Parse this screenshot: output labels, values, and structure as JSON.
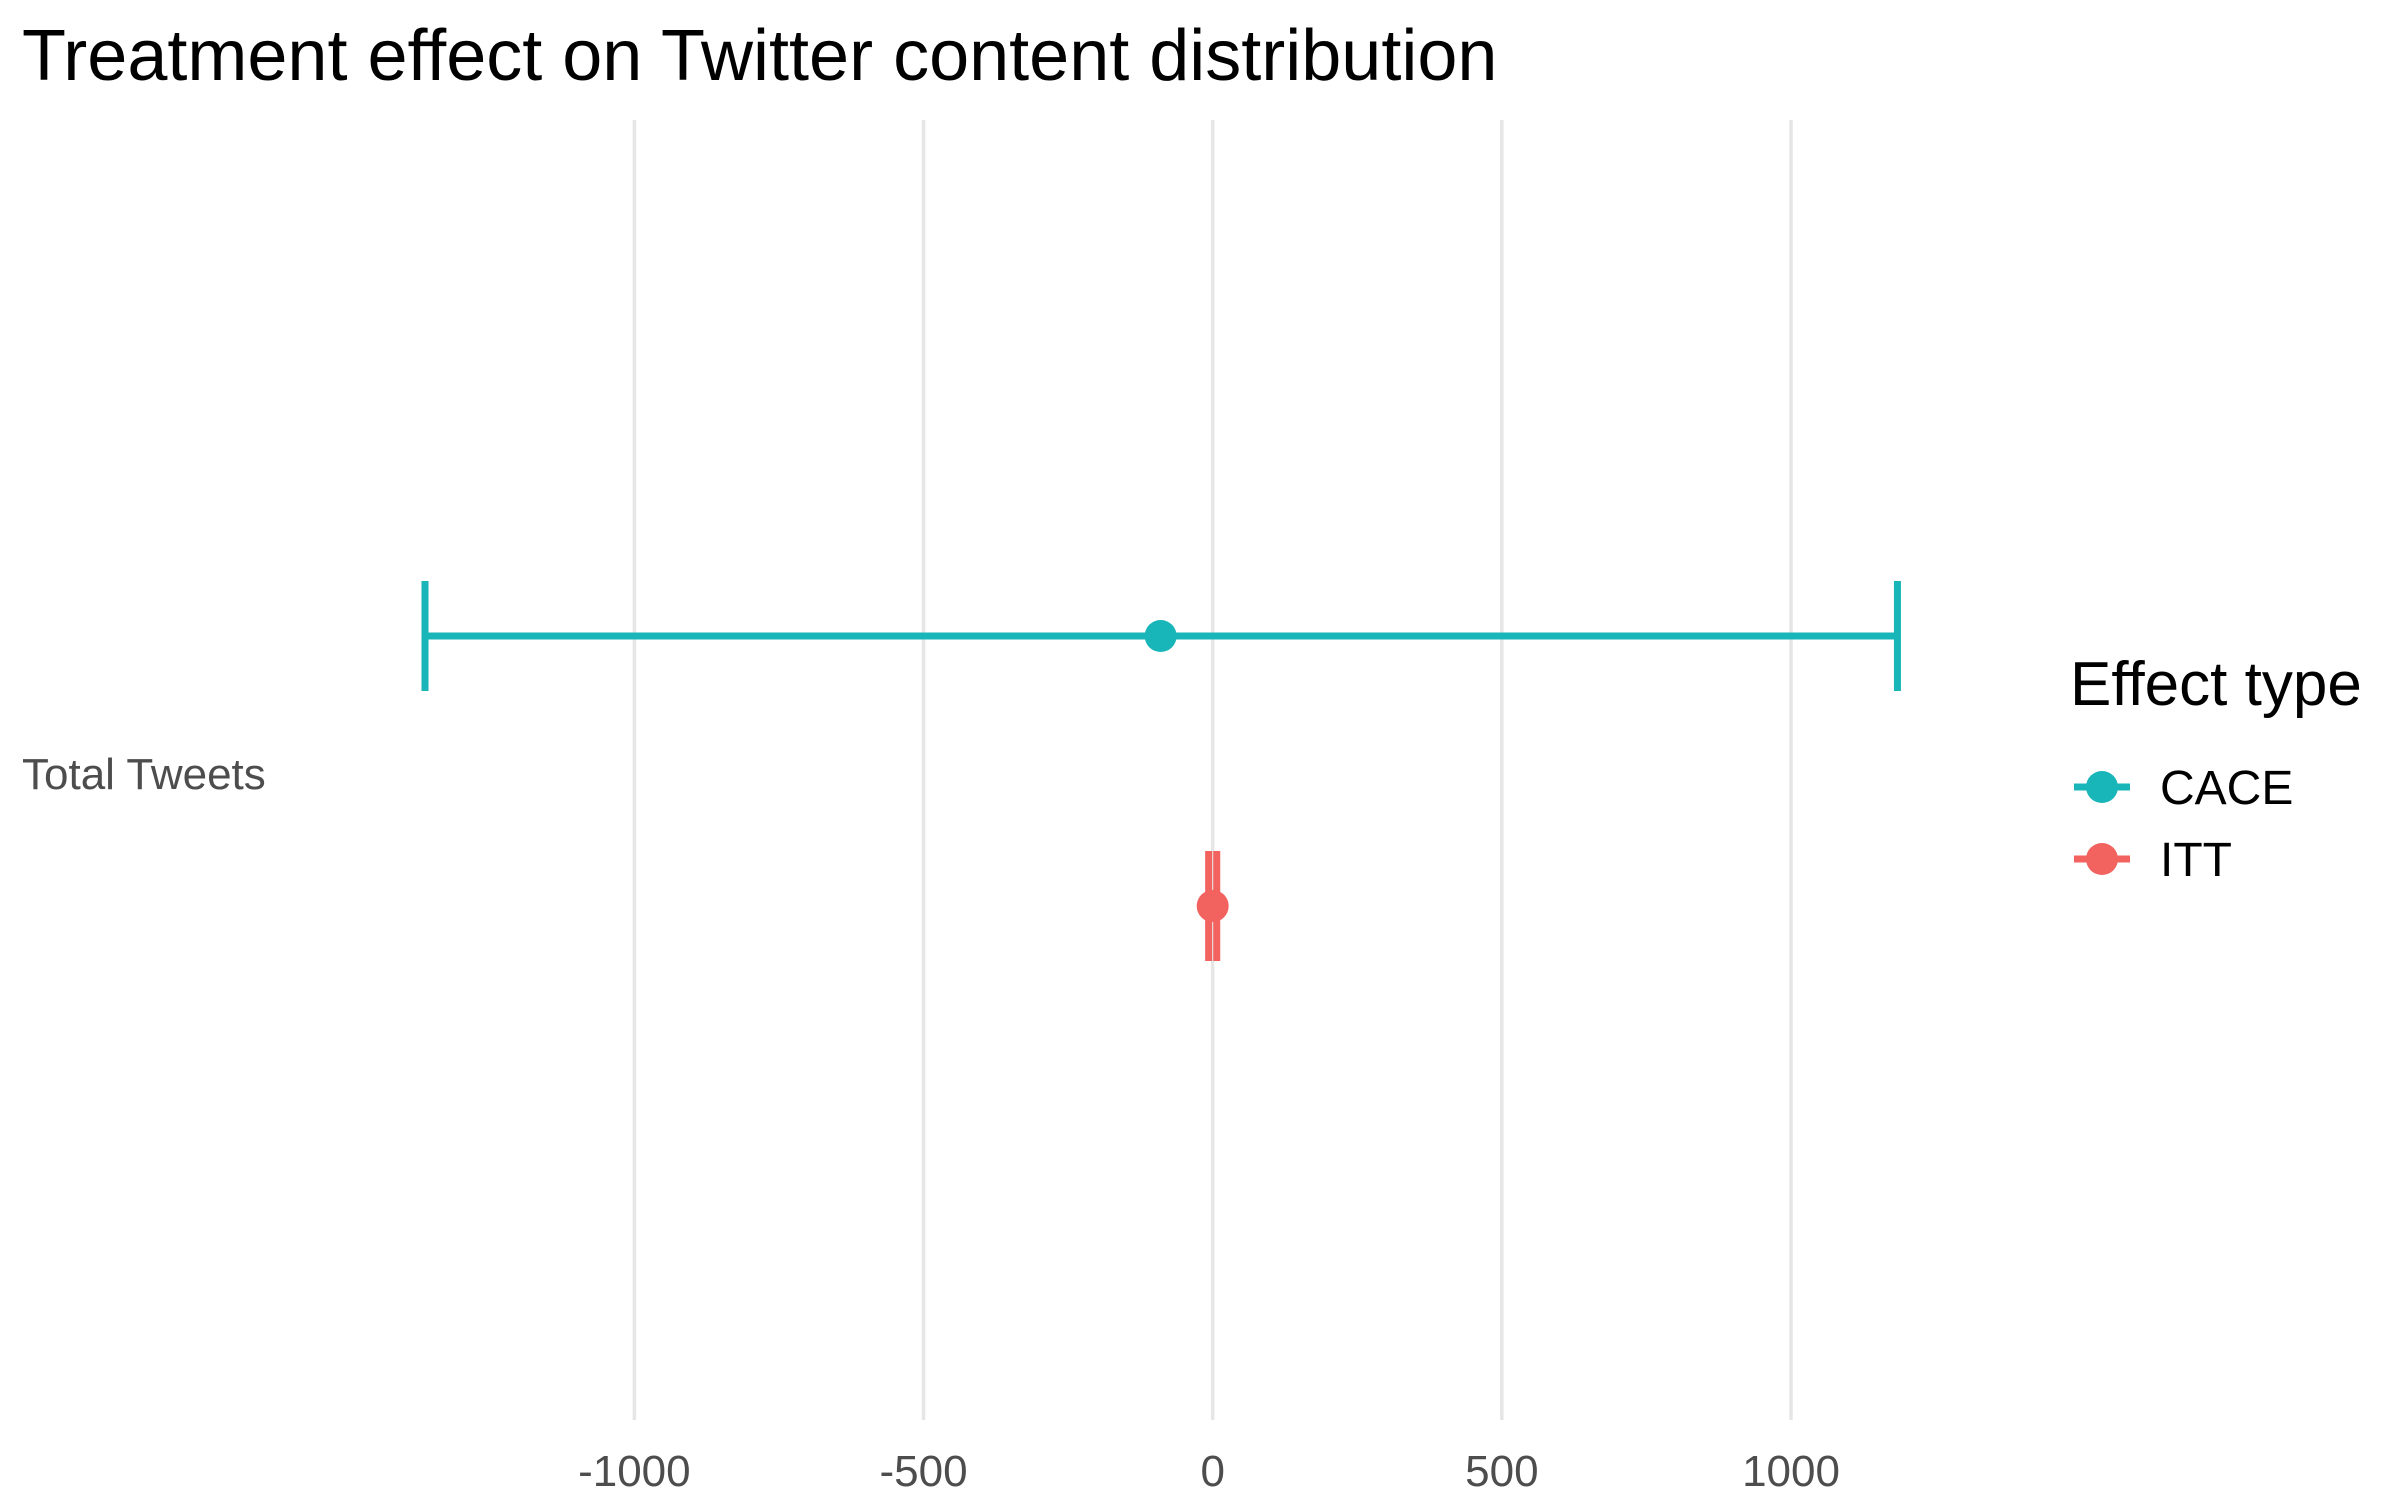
{
  "chart_data": {
    "type": "errorbar",
    "title": "Treatment effect on Twitter content distribution",
    "xlabel": "",
    "ylabel": "",
    "xlim": [
      -1362,
      1223
    ],
    "x_ticks": [
      -1000,
      -500,
      0,
      500,
      1000
    ],
    "x_tick_labels": [
      "-1000",
      "-500",
      "0",
      "500",
      "1000"
    ],
    "grid": "vertical-major",
    "categories": [
      "Total Tweets"
    ],
    "legend": {
      "title": "Effect type",
      "position": "right",
      "entries": [
        {
          "label": "CACE",
          "color": "#18B5B9"
        },
        {
          "label": "ITT",
          "color": "#F2625E"
        }
      ]
    },
    "series": [
      {
        "name": "CACE",
        "color": "#18B5B9",
        "category": "Total Tweets",
        "estimate": -90,
        "lower": -1362,
        "upper": 1184
      },
      {
        "name": "ITT",
        "color": "#F2625E",
        "category": "Total Tweets",
        "estimate": 0,
        "lower": -7,
        "upper": 7
      }
    ]
  }
}
